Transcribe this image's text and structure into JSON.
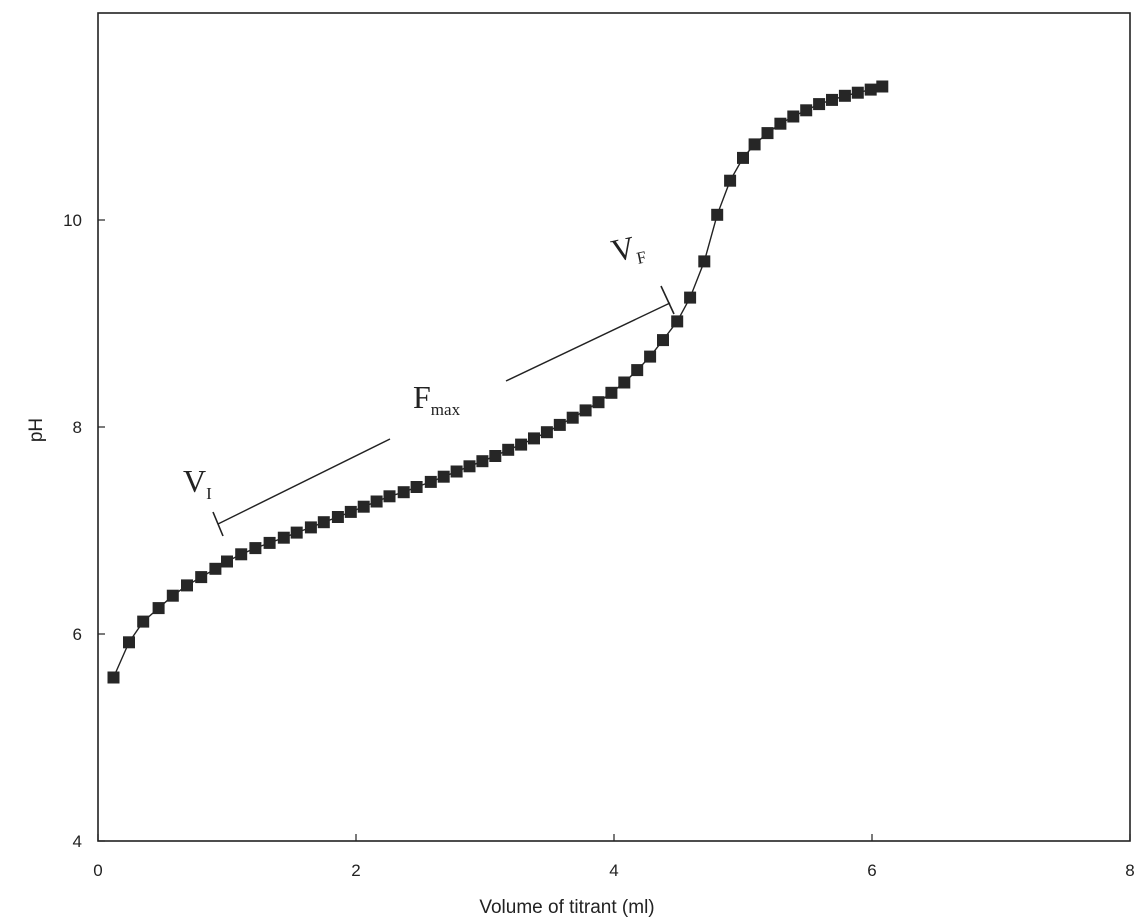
{
  "chart_data": {
    "type": "scatter",
    "xlabel": "Volume of titrant (ml)",
    "ylabel": "pH",
    "xlim": [
      0,
      8
    ],
    "ylim": [
      4,
      12
    ],
    "xticks": [
      0,
      2,
      4,
      6,
      8
    ],
    "yticks": [
      4,
      6,
      8,
      10
    ],
    "grid": false,
    "marker": "square",
    "connected": true,
    "series": [
      {
        "points": [
          [
            0.12,
            5.58
          ],
          [
            0.24,
            5.92
          ],
          [
            0.35,
            6.12
          ],
          [
            0.47,
            6.25
          ],
          [
            0.58,
            6.37
          ],
          [
            0.69,
            6.47
          ],
          [
            0.8,
            6.55
          ],
          [
            0.91,
            6.63
          ],
          [
            1.0,
            6.7
          ],
          [
            1.11,
            6.77
          ],
          [
            1.22,
            6.83
          ],
          [
            1.33,
            6.88
          ],
          [
            1.44,
            6.93
          ],
          [
            1.54,
            6.98
          ],
          [
            1.65,
            7.03
          ],
          [
            1.75,
            7.08
          ],
          [
            1.86,
            7.13
          ],
          [
            1.96,
            7.18
          ],
          [
            2.06,
            7.23
          ],
          [
            2.16,
            7.28
          ],
          [
            2.26,
            7.33
          ],
          [
            2.37,
            7.37
          ],
          [
            2.47,
            7.42
          ],
          [
            2.58,
            7.47
          ],
          [
            2.68,
            7.52
          ],
          [
            2.78,
            7.57
          ],
          [
            2.88,
            7.62
          ],
          [
            2.98,
            7.67
          ],
          [
            3.08,
            7.72
          ],
          [
            3.18,
            7.78
          ],
          [
            3.28,
            7.83
          ],
          [
            3.38,
            7.89
          ],
          [
            3.48,
            7.95
          ],
          [
            3.58,
            8.02
          ],
          [
            3.68,
            8.09
          ],
          [
            3.78,
            8.16
          ],
          [
            3.88,
            8.24
          ],
          [
            3.98,
            8.33
          ],
          [
            4.08,
            8.43
          ],
          [
            4.18,
            8.55
          ],
          [
            4.28,
            8.68
          ],
          [
            4.38,
            8.84
          ],
          [
            4.49,
            9.02
          ],
          [
            4.59,
            9.25
          ],
          [
            4.7,
            9.6
          ],
          [
            4.8,
            10.05
          ],
          [
            4.9,
            10.38
          ],
          [
            5.0,
            10.6
          ],
          [
            5.09,
            10.73
          ],
          [
            5.19,
            10.84
          ],
          [
            5.29,
            10.93
          ],
          [
            5.39,
            11.0
          ],
          [
            5.49,
            11.06
          ],
          [
            5.59,
            11.12
          ],
          [
            5.69,
            11.16
          ],
          [
            5.79,
            11.2
          ],
          [
            5.89,
            11.23
          ],
          [
            5.99,
            11.26
          ],
          [
            6.08,
            11.29
          ]
        ]
      }
    ],
    "annotations": {
      "vi": {
        "main": "V",
        "sub": "I"
      },
      "vf": {
        "main": "V",
        "sub": "F"
      },
      "fmax": {
        "main": "F",
        "sub": "max"
      }
    }
  }
}
